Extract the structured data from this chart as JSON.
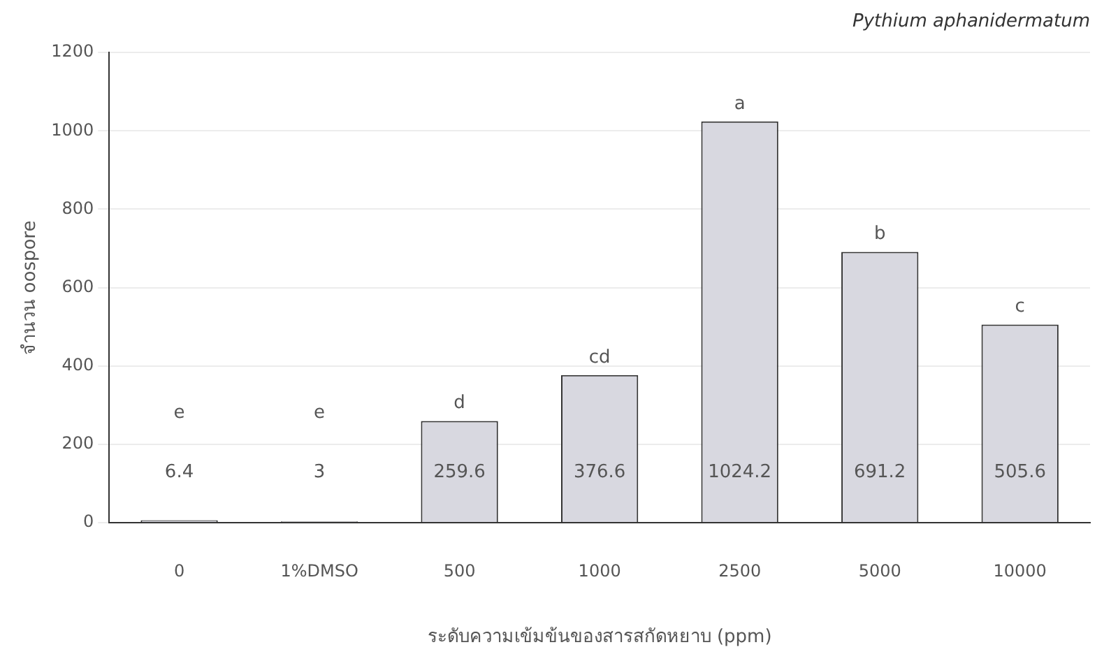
{
  "chart_data": {
    "type": "bar",
    "title": "Pythium aphanidermatum",
    "xlabel": "ระดับความเข้มข้นของสารสกัดหยาบ (ppm)",
    "ylabel": "จำนวน oospore",
    "categories": [
      "0",
      "1%DMSO",
      "500",
      "1000",
      "2500",
      "5000",
      "10000"
    ],
    "values": [
      6.4,
      3,
      259.6,
      376.6,
      1024.2,
      691.2,
      505.6
    ],
    "color": "#d8d8e0",
    "ylim": [
      0,
      1200
    ],
    "yticks": [
      0,
      200,
      400,
      600,
      800,
      1000,
      1200
    ],
    "grid": "y",
    "data_labels": true,
    "annotations": [
      "e",
      "e",
      "d",
      "cd",
      "a",
      "b",
      "c"
    ]
  }
}
